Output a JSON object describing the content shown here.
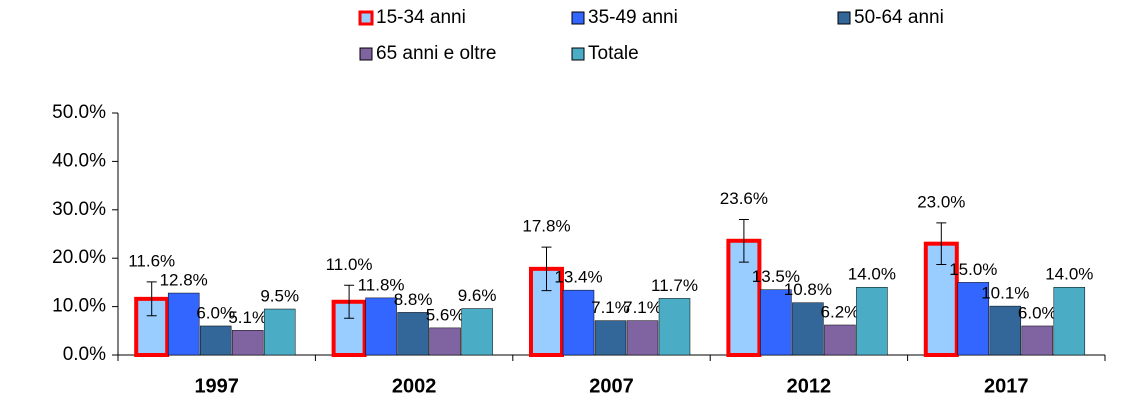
{
  "chart_data": {
    "type": "bar",
    "categories": [
      "1997",
      "2002",
      "2007",
      "2012",
      "2017"
    ],
    "series": [
      {
        "name": "15-34 anni",
        "color": "#99ccff",
        "edgecolor": "#ff0000",
        "values": [
          11.6,
          11.0,
          17.8,
          23.6,
          23.0
        ],
        "errors": [
          3.5,
          3.4,
          4.5,
          4.4,
          4.3
        ],
        "value_labels": [
          "11.6%",
          "11.0%",
          "17.8%",
          "23.6%",
          "23.0%"
        ]
      },
      {
        "name": "35-49 anni",
        "color": "#3366ff",
        "values": [
          12.8,
          11.8,
          13.4,
          13.5,
          15.0
        ],
        "value_labels": [
          "12.8%",
          "11.8%",
          "13.4%",
          "13.5%",
          "15.0%"
        ]
      },
      {
        "name": "50-64 anni",
        "color": "#336699",
        "values": [
          6.0,
          8.8,
          7.1,
          10.8,
          10.1
        ],
        "value_labels": [
          "6.0%",
          "8.8%",
          "7.1%",
          "10.8%",
          "10.1%"
        ]
      },
      {
        "name": "65 anni e oltre",
        "color": "#8064a2",
        "values": [
          5.1,
          5.6,
          7.1,
          6.2,
          6.0
        ],
        "value_labels": [
          "5.1%",
          "5.6%",
          "7.1%",
          "6.2%",
          "6.0%"
        ]
      },
      {
        "name": "Totale",
        "color": "#4bacc6",
        "values": [
          9.5,
          9.6,
          11.7,
          14.0,
          14.0
        ],
        "value_labels": [
          "9.5%",
          "9.6%",
          "11.7%",
          "14.0%",
          "14.0%"
        ]
      }
    ],
    "ylim": [
      0,
      50
    ],
    "yticks": [
      {
        "value": 0,
        "label": "0.0%"
      },
      {
        "value": 10,
        "label": "10.0%"
      },
      {
        "value": 20,
        "label": "20.0%"
      },
      {
        "value": 30,
        "label": "30.0%"
      },
      {
        "value": 40,
        "label": "40.0%"
      },
      {
        "value": 50,
        "label": "50.0%"
      }
    ],
    "legend": "top"
  }
}
